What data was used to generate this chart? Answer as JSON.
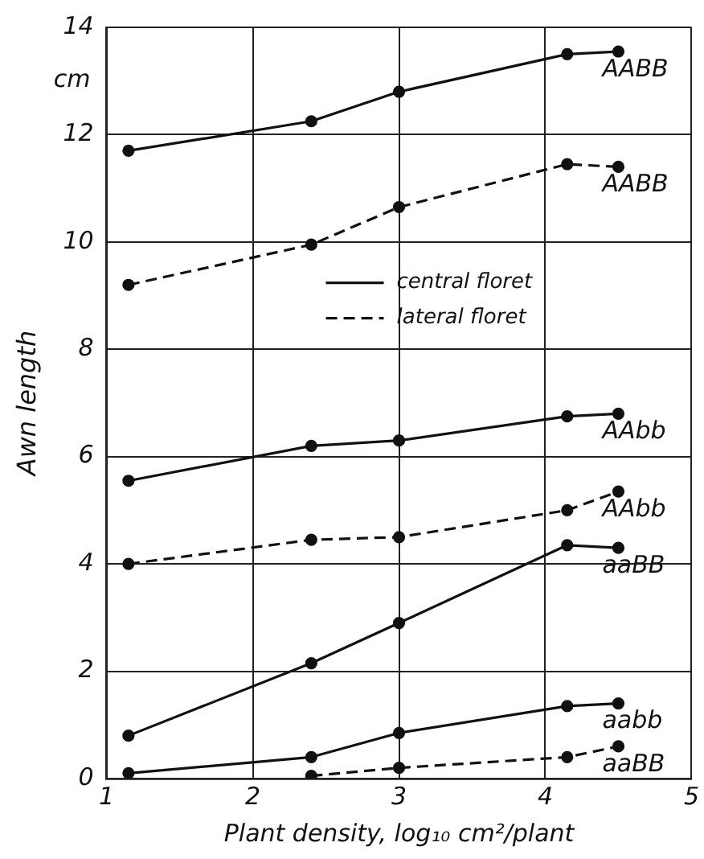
{
  "chart_data": {
    "type": "line",
    "xlabel": "Plant density, log₁₀ cm²/plant",
    "ylabel": "Awn length",
    "x": [
      1.15,
      2.4,
      3,
      4.15,
      4.5
    ],
    "series": [
      {
        "name": "AABB",
        "color": "#111111",
        "line_style": "solid",
        "values": [
          11.7,
          12.25,
          12.8,
          13.5,
          13.55
        ]
      },
      {
        "name": "AABB",
        "color": "#111111",
        "line_style": "dashed",
        "values": [
          9.2,
          9.95,
          10.65,
          11.45,
          11.4
        ]
      },
      {
        "name": "AAbb",
        "color": "#111111",
        "line_style": "solid",
        "values": [
          5.55,
          6.2,
          6.3,
          6.75,
          6.8
        ]
      },
      {
        "name": "AAbb",
        "color": "#111111",
        "line_style": "dashed",
        "values": [
          4.0,
          4.45,
          4.5,
          5.0,
          5.35
        ]
      },
      {
        "name": "aaBB",
        "color": "#111111",
        "line_style": "solid",
        "values": [
          0.8,
          2.15,
          2.9,
          4.35,
          4.3
        ]
      },
      {
        "name": "aabb",
        "color": "#111111",
        "line_style": "solid",
        "values": [
          0.1,
          0.4,
          0.85,
          1.35,
          1.4
        ]
      },
      {
        "name": "aaBB",
        "color": "#111111",
        "line_style": "dashed",
        "values": [
          null,
          0.05,
          0.2,
          0.4,
          0.6
        ]
      }
    ],
    "xlim": [
      1,
      5
    ],
    "xticks": [
      1,
      2,
      3,
      4,
      5
    ],
    "ylim": [
      0,
      14
    ],
    "yticks": [
      0,
      2,
      4,
      6,
      8,
      10,
      12,
      14
    ],
    "grid": true,
    "marker": "circle",
    "annotations": [
      "cm",
      "central floret",
      "lateral floret"
    ]
  }
}
